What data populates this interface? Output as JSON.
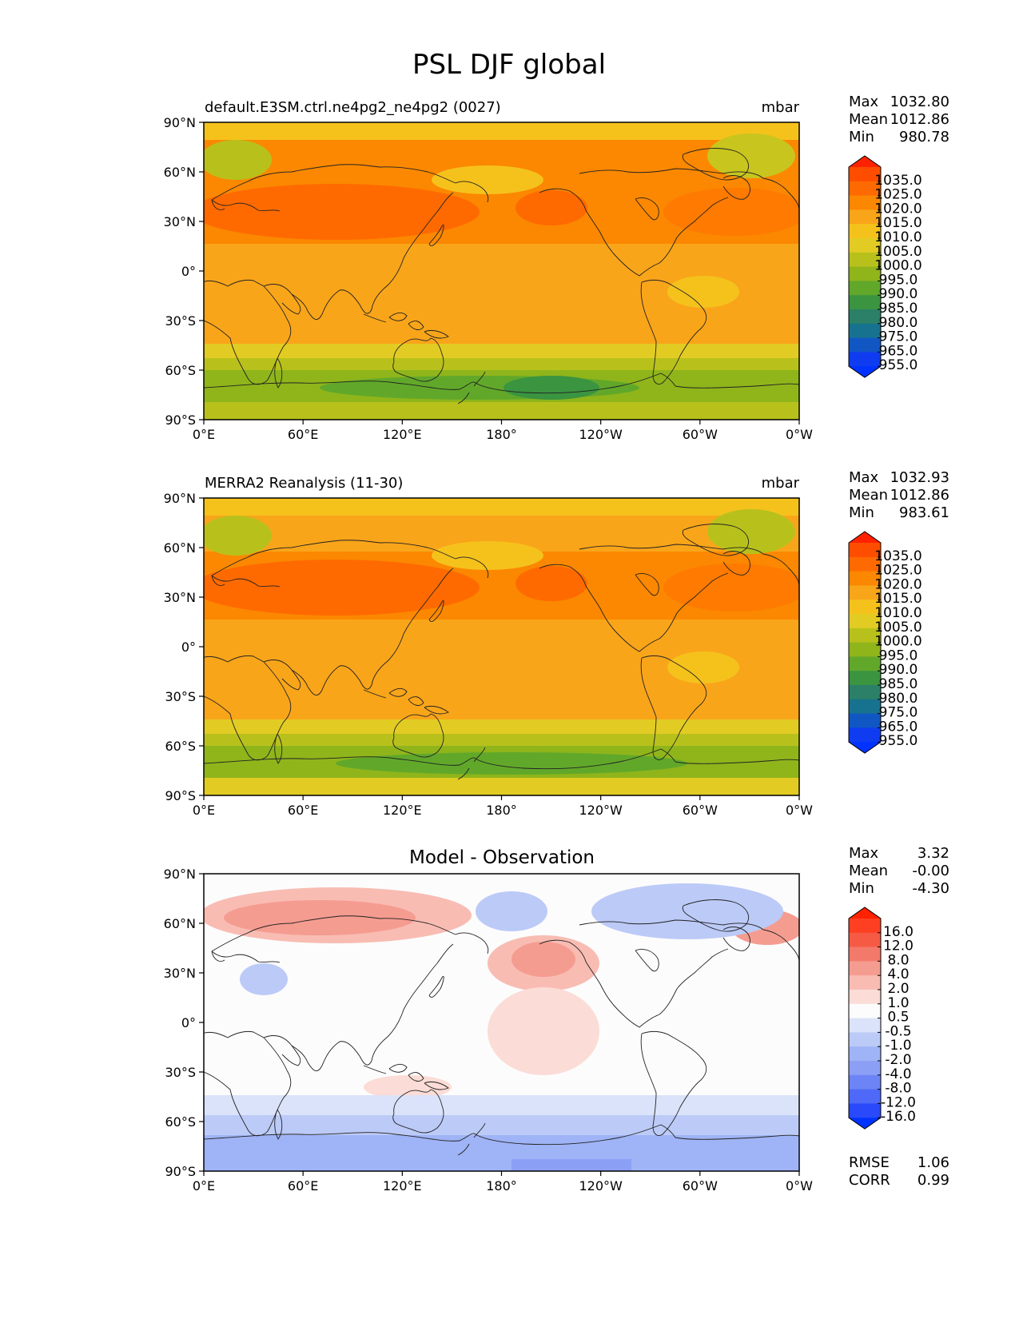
{
  "suptitle": "PSL DJF global",
  "axes": {
    "xticks": [
      "0°E",
      "60°E",
      "120°E",
      "180°",
      "120°W",
      "60°W",
      "0°W"
    ],
    "yticks": [
      "90°N",
      "60°N",
      "30°N",
      "0°",
      "30°S",
      "60°S",
      "90°S"
    ]
  },
  "panels": [
    {
      "left_title": "default.E3SM.ctrl.ne4pg2_ne4pg2 (0027)",
      "right_title": "mbar",
      "center_title": "",
      "stats": [
        {
          "label": "Max",
          "value": "1032.80"
        },
        {
          "label": "Mean",
          "value": "1012.86"
        },
        {
          "label": "Min",
          "value": "980.78"
        }
      ],
      "colorbar": "absolute"
    },
    {
      "left_title": "MERRA2 Reanalysis (11-30)",
      "right_title": "mbar",
      "center_title": "",
      "stats": [
        {
          "label": "Max",
          "value": "1032.93"
        },
        {
          "label": "Mean",
          "value": "1012.86"
        },
        {
          "label": "Min",
          "value": "983.61"
        }
      ],
      "colorbar": "absolute"
    },
    {
      "left_title": "",
      "right_title": "",
      "center_title": "Model - Observation",
      "stats": [
        {
          "label": "Max",
          "value": "3.32"
        },
        {
          "label": "Mean",
          "value": "-0.00"
        },
        {
          "label": "Min",
          "value": "-4.30"
        }
      ],
      "colorbar": "diff",
      "extra_stats": [
        {
          "label": "RMSE",
          "value": "1.06"
        },
        {
          "label": "CORR",
          "value": "0.99"
        }
      ]
    }
  ],
  "colorbars": {
    "absolute": {
      "labels": [
        "1035.0",
        "1025.0",
        "1020.0",
        "1015.0",
        "1010.0",
        "1005.0",
        "1000.0",
        "995.0",
        "990.0",
        "985.0",
        "980.0",
        "975.0",
        "965.0",
        "955.0"
      ],
      "colors": [
        "#ff2200",
        "#ff4d00",
        "#ff6a00",
        "#fb8800",
        "#f9a51a",
        "#f5c21c",
        "#e2cc23",
        "#b8c11c",
        "#8fb51b",
        "#61a82a",
        "#3a9440",
        "#2b8067",
        "#17728f",
        "#1057c4",
        "#0f3cf0",
        "#0033ff"
      ]
    },
    "diff": {
      "labels": [
        "16.0",
        "12.0",
        "8.0",
        "4.0",
        "2.0",
        "1.0",
        "0.5",
        "-0.5",
        "-1.0",
        "-2.0",
        "-4.0",
        "-8.0",
        "-12.0",
        "-16.0"
      ],
      "colors": [
        "#ff2200",
        "#ff3f22",
        "#f65a45",
        "#f37a6a",
        "#f59c90",
        "#f8bcb3",
        "#fbdcd6",
        "#fcfcfc",
        "#dbe3fa",
        "#bccaf7",
        "#9fb4f6",
        "#8ba0f5",
        "#6c84f5",
        "#4e69f7",
        "#2a49fa",
        "#0033ff"
      ]
    }
  },
  "chart_data": [
    {
      "type": "heatmap",
      "title": "default.E3SM.ctrl.ne4pg2_ne4pg2 (0027)",
      "units": "mbar",
      "x_range": [
        0,
        360
      ],
      "y_range": [
        -90,
        90
      ],
      "summary": {
        "max": 1032.8,
        "mean": 1012.86,
        "min": 980.78
      },
      "zonal_profile": [
        {
          "lat": 85,
          "value": 1010
        },
        {
          "lat": 75,
          "value": 1007
        },
        {
          "lat": 65,
          "value": 1010
        },
        {
          "lat": 50,
          "value": 1016
        },
        {
          "lat": 35,
          "value": 1021
        },
        {
          "lat": 20,
          "value": 1016
        },
        {
          "lat": 0,
          "value": 1012
        },
        {
          "lat": -25,
          "value": 1014
        },
        {
          "lat": -40,
          "value": 1012
        },
        {
          "lat": -50,
          "value": 1005
        },
        {
          "lat": -60,
          "value": 993
        },
        {
          "lat": -70,
          "value": 988
        },
        {
          "lat": -82,
          "value": 995
        }
      ]
    },
    {
      "type": "heatmap",
      "title": "MERRA2 Reanalysis (11-30)",
      "units": "mbar",
      "x_range": [
        0,
        360
      ],
      "y_range": [
        -90,
        90
      ],
      "summary": {
        "max": 1032.93,
        "mean": 1012.86,
        "min": 983.61
      },
      "zonal_profile": [
        {
          "lat": 85,
          "value": 1012
        },
        {
          "lat": 75,
          "value": 1008
        },
        {
          "lat": 65,
          "value": 1010
        },
        {
          "lat": 50,
          "value": 1016
        },
        {
          "lat": 35,
          "value": 1021
        },
        {
          "lat": 20,
          "value": 1016
        },
        {
          "lat": 0,
          "value": 1012
        },
        {
          "lat": -25,
          "value": 1014
        },
        {
          "lat": -40,
          "value": 1012
        },
        {
          "lat": -50,
          "value": 1004
        },
        {
          "lat": -60,
          "value": 993
        },
        {
          "lat": -70,
          "value": 990
        },
        {
          "lat": -82,
          "value": 1003
        }
      ]
    },
    {
      "type": "heatmap",
      "title": "Model - Observation",
      "units": "mbar",
      "x_range": [
        0,
        360
      ],
      "y_range": [
        -90,
        90
      ],
      "summary": {
        "max": 3.32,
        "mean": -0.0,
        "min": -4.3,
        "rmse": 1.06,
        "corr": 0.99
      }
    }
  ]
}
